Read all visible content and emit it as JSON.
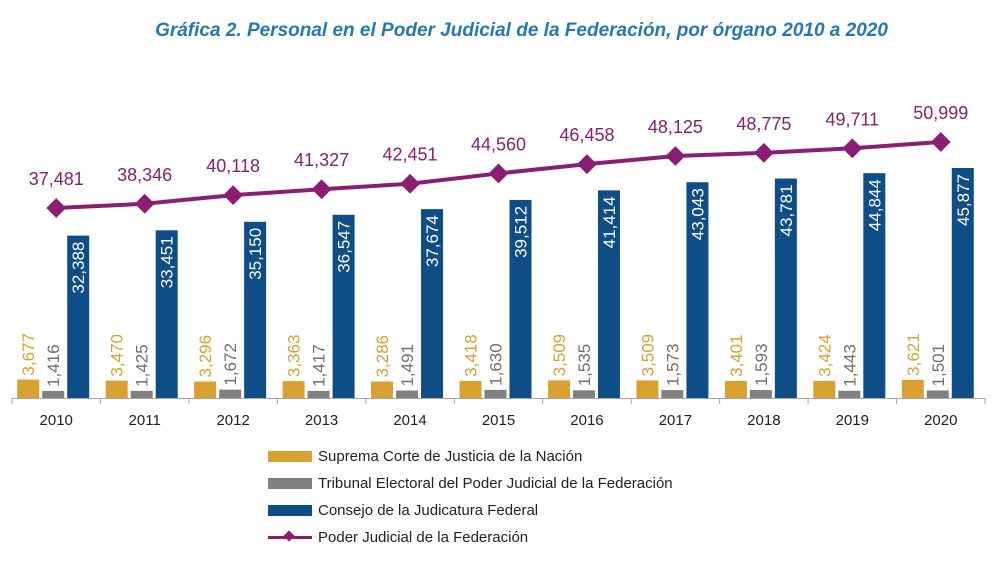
{
  "chart_data": {
    "type": "bar",
    "title": "Gráfica 2. Personal en el Poder Judicial de la Federación, por órgano 2010 a 2020",
    "categories": [
      "2010",
      "2011",
      "2012",
      "2013",
      "2014",
      "2015",
      "2016",
      "2017",
      "2018",
      "2019",
      "2020"
    ],
    "series": [
      {
        "name": "Suprema Corte de Justicia de la Nación",
        "type": "bar",
        "color": "#D9A032",
        "values": [
          3677,
          3470,
          3296,
          3363,
          3286,
          3418,
          3509,
          3509,
          3401,
          3424,
          3621
        ],
        "labels": [
          "3,677",
          "3,470",
          "3,296",
          "3,363",
          "3,286",
          "3,418",
          "3,509",
          "3,509",
          "3,401",
          "3,424",
          "3,621"
        ]
      },
      {
        "name": "Tribunal Electoral del Poder Judicial de la Federación",
        "type": "bar",
        "color": "#808080",
        "values": [
          1416,
          1425,
          1672,
          1417,
          1491,
          1630,
          1535,
          1573,
          1593,
          1443,
          1501
        ],
        "labels": [
          "1,416",
          "1,425",
          "1,672",
          "1,417",
          "1,491",
          "1,630",
          "1,535",
          "1,573",
          "1,593",
          "1,443",
          "1,501"
        ]
      },
      {
        "name": "Consejo de la Judicatura Federal",
        "type": "bar",
        "color": "#0E4D86",
        "values": [
          32388,
          33451,
          35150,
          36547,
          37674,
          39512,
          41414,
          43043,
          43781,
          44844,
          45877
        ],
        "labels": [
          "32,388",
          "33,451",
          "35,150",
          "36,547",
          "37,674",
          "39,512",
          "41,414",
          "43,043",
          "43,781",
          "44,844",
          "45,877"
        ]
      },
      {
        "name": "Poder Judicial de la Federación",
        "type": "line",
        "color": "#8B1E73",
        "values": [
          37481,
          38346,
          40118,
          41327,
          42451,
          44560,
          46458,
          48125,
          48775,
          49711,
          50999
        ],
        "labels": [
          "37,481",
          "38,346",
          "40,118",
          "41,327",
          "42,451",
          "44,560",
          "46,458",
          "48,125",
          "48,775",
          "49,711",
          "50,999"
        ]
      }
    ],
    "grid": false,
    "legend_position": "bottom-center"
  },
  "colors": {
    "title": "#2678B5",
    "axis": "#A6A6A6",
    "suprema_label": "#D9A032",
    "tribunal_label": "#707070",
    "consejo_label": "#FFFFFF",
    "total_label": "#8B1E73"
  }
}
